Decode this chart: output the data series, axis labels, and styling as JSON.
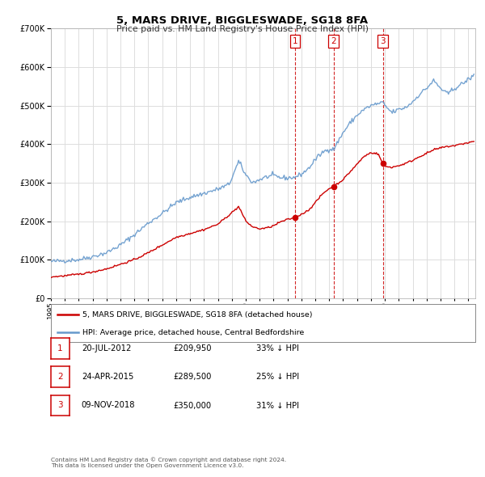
{
  "title": "5, MARS DRIVE, BIGGLESWADE, SG18 8FA",
  "subtitle": "Price paid vs. HM Land Registry's House Price Index (HPI)",
  "legend_line1": "5, MARS DRIVE, BIGGLESWADE, SG18 8FA (detached house)",
  "legend_line2": "HPI: Average price, detached house, Central Bedfordshire",
  "transactions": [
    {
      "num": 1,
      "date": "20-JUL-2012",
      "price": "£209,950",
      "pct": "33% ↓ HPI",
      "year": 2012.55
    },
    {
      "num": 2,
      "date": "24-APR-2015",
      "price": "£289,500",
      "pct": "25% ↓ HPI",
      "year": 2015.31
    },
    {
      "num": 3,
      "date": "09-NOV-2018",
      "price": "£350,000",
      "pct": "31% ↓ HPI",
      "year": 2018.86
    }
  ],
  "transaction_prices": [
    209950,
    289500,
    350000
  ],
  "footer": "Contains HM Land Registry data © Crown copyright and database right 2024.\nThis data is licensed under the Open Government Licence v3.0.",
  "red_color": "#cc0000",
  "blue_color": "#6699cc",
  "grid_color": "#dddddd",
  "ylim": [
    0,
    700000
  ],
  "yticks": [
    0,
    100000,
    200000,
    300000,
    400000,
    500000,
    600000,
    700000
  ],
  "xlim_start": 1995.0,
  "xlim_end": 2025.5,
  "hpi_anchors": {
    "1995.0": 95000,
    "1997.0": 100000,
    "1998.0": 108000,
    "1999.0": 118000,
    "2000.0": 138000,
    "2001.0": 165000,
    "2002.0": 195000,
    "2003.0": 220000,
    "2004.0": 248000,
    "2005.0": 262000,
    "2006.0": 272000,
    "2007.0": 283000,
    "2007.8": 295000,
    "2008.5": 355000,
    "2009.0": 320000,
    "2009.5": 300000,
    "2010.0": 308000,
    "2010.5": 315000,
    "2011.0": 318000,
    "2011.5": 313000,
    "2012.0": 312000,
    "2012.55": 314000,
    "2013.0": 322000,
    "2013.5": 336000,
    "2014.0": 360000,
    "2014.5": 378000,
    "2015.0": 388000,
    "2015.31": 386000,
    "2016.0": 430000,
    "2016.5": 455000,
    "2017.0": 475000,
    "2017.5": 490000,
    "2018.0": 500000,
    "2018.5": 505000,
    "2018.86": 508000,
    "2019.0": 500000,
    "2019.5": 482000,
    "2020.0": 490000,
    "2020.5": 495000,
    "2021.0": 510000,
    "2021.5": 530000,
    "2022.0": 545000,
    "2022.5": 565000,
    "2023.0": 545000,
    "2023.5": 530000,
    "2024.0": 545000,
    "2024.5": 555000,
    "2025.0": 568000,
    "2025.4": 578000
  },
  "pp_anchors": {
    "1995.0": 55000,
    "1996.0": 58000,
    "1997.0": 62000,
    "1998.0": 68000,
    "1999.0": 76000,
    "2000.0": 88000,
    "2001.0": 100000,
    "2002.0": 118000,
    "2003.0": 138000,
    "2004.0": 158000,
    "2005.0": 168000,
    "2006.0": 178000,
    "2007.0": 192000,
    "2008.0": 222000,
    "2008.5": 238000,
    "2009.0": 200000,
    "2009.5": 185000,
    "2010.0": 180000,
    "2010.5": 182000,
    "2011.0": 188000,
    "2011.5": 198000,
    "2012.0": 204000,
    "2012.55": 209950,
    "2013.0": 218000,
    "2013.5": 228000,
    "2014.0": 248000,
    "2014.5": 270000,
    "2015.0": 285000,
    "2015.31": 289500,
    "2016.0": 308000,
    "2016.5": 328000,
    "2017.0": 348000,
    "2017.5": 368000,
    "2018.0": 378000,
    "2018.5": 375000,
    "2018.86": 350000,
    "2019.0": 342000,
    "2019.5": 340000,
    "2020.0": 344000,
    "2020.5": 350000,
    "2021.0": 358000,
    "2021.5": 368000,
    "2022.0": 376000,
    "2022.5": 385000,
    "2023.0": 390000,
    "2023.5": 394000,
    "2024.0": 396000,
    "2024.5": 400000,
    "2025.0": 404000,
    "2025.4": 407000
  }
}
